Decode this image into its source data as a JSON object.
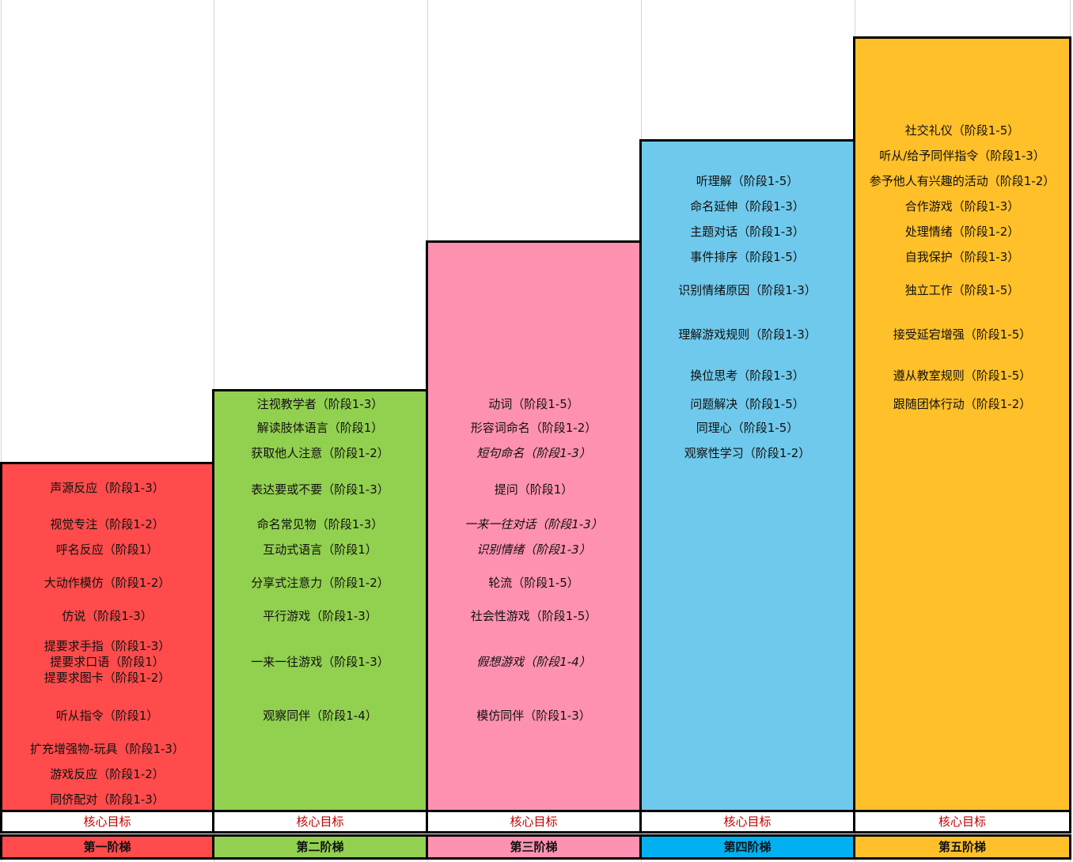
{
  "colors": {
    "stair1": "#ff4b4b",
    "stair2": "#92d050",
    "stair3": "#ff91b0",
    "stair4": "#6fc9ec",
    "stair4_label": "#00b0f0",
    "stair5": "#ffc02a",
    "core_text": "#c00000"
  },
  "stairs": [
    {
      "label": "第一阶梯",
      "core": "核心目标",
      "items": [
        {
          "text": "声源反应（阶段1-3）"
        },
        {
          "text": "视觉专注（阶段1-2）"
        },
        {
          "text": "呼名反应（阶段1）"
        },
        {
          "text": "大动作模仿（阶段1-2）"
        },
        {
          "text": "仿说（阶段1-3）"
        },
        {
          "text": "提要求手指（阶段1-3）"
        },
        {
          "text": "提要求口语（阶段1）"
        },
        {
          "text": "提要求图卡（阶段1-2）"
        },
        {
          "text": "听从指令（阶段1）"
        },
        {
          "text": "扩充增强物-玩具（阶段1-3）"
        },
        {
          "text": "游戏反应（阶段1-2）"
        },
        {
          "text": "同侪配对（阶段1-3）"
        }
      ]
    },
    {
      "label": "第二阶梯",
      "core": "核心目标",
      "items": [
        {
          "text": "注视教学者（阶段1-3）"
        },
        {
          "text": "解读肢体语言（阶段1）"
        },
        {
          "text": "获取他人注意（阶段1-2）"
        },
        {
          "text": "表达要或不要（阶段1-3）"
        },
        {
          "text": "命名常见物（阶段1-3）"
        },
        {
          "text": "互动式语言（阶段1）"
        },
        {
          "text": "分享式注意力（阶段1-2）"
        },
        {
          "text": "平行游戏（阶段1-3）"
        },
        {
          "text": "一来一往游戏（阶段1-3）"
        },
        {
          "text": "观察同伴（阶段1-4）"
        }
      ]
    },
    {
      "label": "第三阶梯",
      "core": "核心目标",
      "items": [
        {
          "text": "动词（阶段1-5）"
        },
        {
          "text": "形容词命名（阶段1-2）"
        },
        {
          "text": "短句命名（阶段1-3）"
        },
        {
          "text": "提问（阶段1）"
        },
        {
          "text": "一来一往对话（阶段1-3）"
        },
        {
          "text": "识别情绪（阶段1-3）"
        },
        {
          "text": "轮流（阶段1-5）"
        },
        {
          "text": "社会性游戏（阶段1-5）"
        },
        {
          "text": "假想游戏（阶段1-4）"
        },
        {
          "text": "模仿同伴（阶段1-3）"
        }
      ]
    },
    {
      "label": "第四阶梯",
      "core": "核心目标",
      "items": [
        {
          "text": "听理解（阶段1-5）"
        },
        {
          "text": "命名延伸（阶段1-3）"
        },
        {
          "text": "主题对话（阶段1-3）"
        },
        {
          "text": "事件排序（阶段1-5）"
        },
        {
          "text": "识别情绪原因（阶段1-3）"
        },
        {
          "text": "理解游戏规则（阶段1-3）"
        },
        {
          "text": "换位思考（阶段1-3）"
        },
        {
          "text": "问题解决（阶段1-5）"
        },
        {
          "text": "同理心（阶段1-5）"
        },
        {
          "text": "观察性学习（阶段1-2）"
        }
      ]
    },
    {
      "label": "第五阶梯",
      "core": "核心目标",
      "items": [
        {
          "text": "社交礼仪（阶段1-5）"
        },
        {
          "text": "听从/给予同伴指令（阶段1-3）"
        },
        {
          "text": "参予他人有兴趣的活动（阶段1-2）"
        },
        {
          "text": "合作游戏（阶段1-3）"
        },
        {
          "text": "处理情绪（阶段1-2）"
        },
        {
          "text": "自我保护（阶段1-3）"
        },
        {
          "text": "独立工作（阶段1-5）"
        },
        {
          "text": "接受延宕增强（阶段1-5）"
        },
        {
          "text": "遵从教室规则（阶段1-5）"
        },
        {
          "text": "跟随团体行动（阶段1-2）"
        }
      ]
    }
  ]
}
